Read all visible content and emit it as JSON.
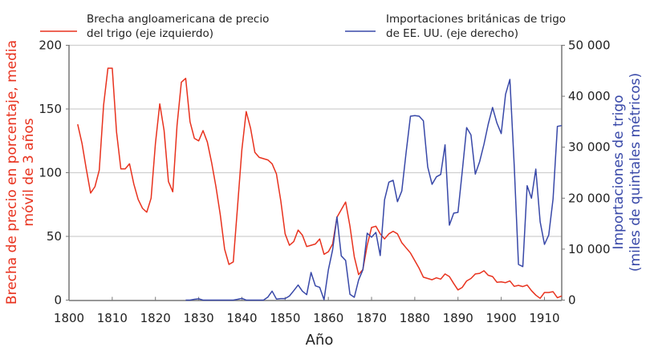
{
  "chart_data": {
    "type": "line",
    "xlabel": "Año",
    "ylabel_left": "Brecha de precio en porcentaje, media móvil de 3 años",
    "ylabel_left_lines": [
      "Brecha de precio en porcentaje, media",
      "móvil de 3 años"
    ],
    "ylabel_right": "Importaciones de trigo (miles de quintales métricos)",
    "ylabel_right_lines": [
      "Importaciones de trigo",
      "(miles de quintales métricos)"
    ],
    "xlim": [
      1800,
      1914
    ],
    "ylim_left": [
      0,
      200
    ],
    "ylim_right": [
      0,
      50000
    ],
    "x_ticks": [
      "1800",
      "1810",
      "1820",
      "1830",
      "1840",
      "1850",
      "1860",
      "1870",
      "1880",
      "1890",
      "1900",
      "1910"
    ],
    "y_ticks_left": [
      "0",
      "50",
      "100",
      "150",
      "200"
    ],
    "y_ticks_right": [
      "0",
      "10 000",
      "20 000",
      "30 000",
      "40 000",
      "50 000"
    ],
    "grid": "horizontal",
    "legend_position": "top",
    "series": [
      {
        "name": "Brecha angloamericana de precio del trigo (eje izquierdo)",
        "name_lines": [
          "Brecha angloamericana de precio",
          "del trigo (eje izquierdo)"
        ],
        "axis": "left",
        "color": "#e8321e",
        "x": [
          1802,
          1803,
          1804,
          1805,
          1806,
          1807,
          1808,
          1809,
          1810,
          1811,
          1812,
          1813,
          1814,
          1815,
          1816,
          1817,
          1818,
          1819,
          1820,
          1821,
          1822,
          1823,
          1824,
          1825,
          1826,
          1827,
          1828,
          1829,
          1830,
          1831,
          1832,
          1833,
          1834,
          1835,
          1836,
          1837,
          1838,
          1839,
          1840,
          1841,
          1842,
          1843,
          1844,
          1845,
          1846,
          1847,
          1848,
          1849,
          1850,
          1851,
          1852,
          1853,
          1854,
          1855,
          1856,
          1857,
          1858,
          1859,
          1860,
          1861,
          1862,
          1863,
          1864,
          1865,
          1866,
          1867,
          1868,
          1869,
          1870,
          1871,
          1872,
          1873,
          1874,
          1875,
          1876,
          1877,
          1878,
          1879,
          1880,
          1881,
          1882,
          1883,
          1884,
          1885,
          1886,
          1887,
          1888,
          1889,
          1890,
          1891,
          1892,
          1893,
          1894,
          1895,
          1896,
          1897,
          1898,
          1899,
          1900,
          1901,
          1902,
          1903,
          1904,
          1905,
          1906,
          1907,
          1908,
          1909,
          1910,
          1911,
          1912,
          1913,
          1914
        ],
        "values": [
          138,
          123,
          103,
          84,
          89,
          102,
          153,
          182,
          182,
          132,
          103,
          103,
          107,
          91,
          79,
          72,
          69,
          80,
          123,
          154,
          133,
          93,
          85,
          137,
          171,
          174,
          140,
          127,
          125,
          133,
          124,
          108,
          89,
          67,
          40,
          28,
          30,
          74,
          118,
          148,
          135,
          116,
          112,
          111,
          110,
          107,
          99,
          78,
          52,
          43,
          46,
          55,
          51,
          42,
          43,
          44,
          48,
          36,
          38,
          44,
          65,
          71,
          77,
          58,
          34,
          20,
          24,
          43,
          57,
          58,
          52,
          48,
          52,
          54,
          52,
          45,
          41,
          37,
          31,
          25,
          18,
          17,
          16,
          17.5,
          16.5,
          20.5,
          18.5,
          13,
          8,
          10,
          15,
          17,
          20.5,
          21,
          23,
          19.5,
          18.5,
          14,
          14.3,
          13.7,
          15,
          10.8,
          11.6,
          10.6,
          11.8,
          7.4,
          3.9,
          1.4,
          6,
          6,
          6.6,
          1.8,
          3.3
        ]
      },
      {
        "name": "Importaciones británicas de trigo de EE. UU. (eje derecho)",
        "name_lines": [
          "Importaciones británicas de trigo",
          "de EE. UU. (eje derecho)"
        ],
        "axis": "right",
        "color": "#3848a8",
        "x": [
          1827,
          1828,
          1829,
          1830,
          1831,
          1832,
          1833,
          1834,
          1835,
          1836,
          1837,
          1838,
          1839,
          1840,
          1841,
          1842,
          1843,
          1844,
          1845,
          1846,
          1847,
          1848,
          1849,
          1850,
          1851,
          1852,
          1853,
          1854,
          1855,
          1856,
          1857,
          1858,
          1859,
          1860,
          1861,
          1862,
          1863,
          1864,
          1865,
          1866,
          1867,
          1868,
          1869,
          1870,
          1871,
          1872,
          1873,
          1874,
          1875,
          1876,
          1877,
          1878,
          1879,
          1880,
          1881,
          1882,
          1883,
          1884,
          1885,
          1886,
          1887,
          1888,
          1889,
          1890,
          1891,
          1892,
          1893,
          1894,
          1895,
          1896,
          1897,
          1898,
          1899,
          1900,
          1901,
          1902,
          1903,
          1904,
          1905,
          1906,
          1907,
          1908,
          1909,
          1910,
          1911,
          1912,
          1913,
          1914
        ],
        "values": [
          0,
          0,
          150,
          250,
          0,
          0,
          0,
          0,
          0,
          0,
          0,
          0,
          150,
          350,
          0,
          0,
          0,
          0,
          0,
          600,
          1760,
          200,
          300,
          300,
          800,
          1850,
          2950,
          1760,
          1070,
          5420,
          2800,
          2500,
          80,
          5940,
          9870,
          16320,
          8680,
          7780,
          1130,
          550,
          3960,
          5940,
          13130,
          12340,
          13280,
          8750,
          19680,
          23140,
          23500,
          19310,
          21410,
          29000,
          36080,
          36190,
          36080,
          35180,
          26130,
          22720,
          24180,
          24650,
          30470,
          14700,
          17060,
          17220,
          25340,
          33830,
          32410,
          24710,
          27170,
          30580,
          34510,
          37800,
          34770,
          32670,
          40370,
          43300,
          26390,
          7000,
          6570,
          22450,
          19990,
          25700,
          15380,
          10930,
          12770,
          19840,
          34090,
          34250
        ]
      }
    ]
  }
}
